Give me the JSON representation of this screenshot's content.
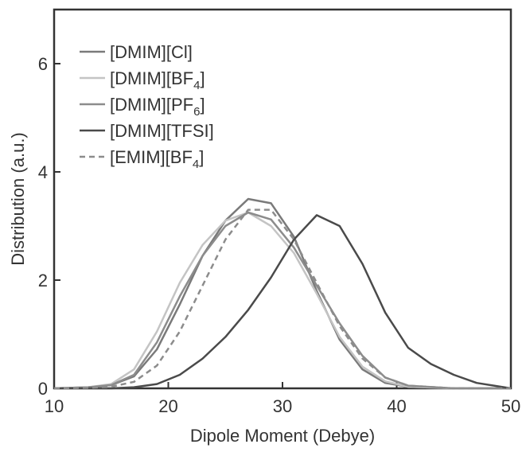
{
  "chart_data": {
    "type": "line",
    "title": "",
    "xlabel": "Dipole Moment (Debye)",
    "ylabel": "Distribution (a.u.)",
    "xlim": [
      10,
      50
    ],
    "ylim": [
      0,
      7
    ],
    "xticks": [
      10,
      20,
      30,
      40,
      50
    ],
    "yticks": [
      0,
      2,
      4,
      6
    ],
    "grid": false,
    "legend_position": "top-left",
    "series": [
      {
        "name": "[DMIM][Cl]",
        "label_main": "[DMIM][Cl]",
        "label_sub": "",
        "label_tail": "",
        "color": "#7a7a7a",
        "dash": "solid",
        "x": [
          10,
          13,
          15,
          17,
          19,
          21,
          23,
          25,
          27,
          29,
          31,
          33,
          35,
          37,
          39,
          41,
          45,
          50
        ],
        "y": [
          0,
          0.02,
          0.06,
          0.22,
          0.72,
          1.55,
          2.45,
          3.1,
          3.5,
          3.42,
          2.8,
          1.8,
          0.9,
          0.35,
          0.1,
          0.03,
          0,
          0
        ]
      },
      {
        "name": "[DMIM][BF4]",
        "label_main": "[DMIM][BF",
        "label_sub": "4",
        "label_tail": "]",
        "color": "#c4c4c4",
        "dash": "solid",
        "x": [
          10,
          13,
          15,
          17,
          19,
          21,
          23,
          25,
          27,
          29,
          31,
          33,
          35,
          37,
          39,
          41,
          45,
          50
        ],
        "y": [
          0,
          0.02,
          0.08,
          0.35,
          1.05,
          1.95,
          2.65,
          3.1,
          3.25,
          3.0,
          2.5,
          1.75,
          0.95,
          0.4,
          0.13,
          0.03,
          0,
          0
        ]
      },
      {
        "name": "[DMIM][PF6]",
        "label_main": "[DMIM][PF",
        "label_sub": "6",
        "label_tail": "]",
        "color": "#8c8c8c",
        "dash": "solid",
        "x": [
          10,
          13,
          15,
          17,
          19,
          21,
          23,
          25,
          27,
          29,
          31,
          33,
          35,
          37,
          39,
          41,
          45,
          50
        ],
        "y": [
          0,
          0.02,
          0.06,
          0.25,
          0.85,
          1.7,
          2.45,
          3.0,
          3.25,
          3.12,
          2.6,
          1.9,
          1.2,
          0.6,
          0.2,
          0.05,
          0,
          0
        ]
      },
      {
        "name": "[DMIM][TFSI]",
        "label_main": "[DMIM][TFSI]",
        "label_sub": "",
        "label_tail": "",
        "color": "#4a4a4a",
        "dash": "solid",
        "x": [
          10,
          15,
          17,
          19,
          21,
          23,
          25,
          27,
          29,
          31,
          33,
          35,
          37,
          39,
          41,
          43,
          45,
          47,
          50
        ],
        "y": [
          0,
          0,
          0.02,
          0.08,
          0.25,
          0.55,
          0.95,
          1.45,
          2.05,
          2.75,
          3.2,
          3.0,
          2.3,
          1.4,
          0.75,
          0.45,
          0.25,
          0.1,
          0
        ]
      },
      {
        "name": "[EMIM][BF4]",
        "label_main": "[EMIM][BF",
        "label_sub": "4",
        "label_tail": "]",
        "color": "#8c8c8c",
        "dash": "dashed",
        "x": [
          10,
          13,
          15,
          17,
          19,
          21,
          23,
          25,
          27,
          29,
          31,
          33,
          35,
          37,
          39,
          41,
          45,
          50
        ],
        "y": [
          0,
          0.01,
          0.03,
          0.12,
          0.42,
          1.05,
          1.9,
          2.75,
          3.3,
          3.3,
          2.75,
          1.95,
          1.15,
          0.55,
          0.2,
          0.05,
          0,
          0
        ]
      }
    ]
  }
}
